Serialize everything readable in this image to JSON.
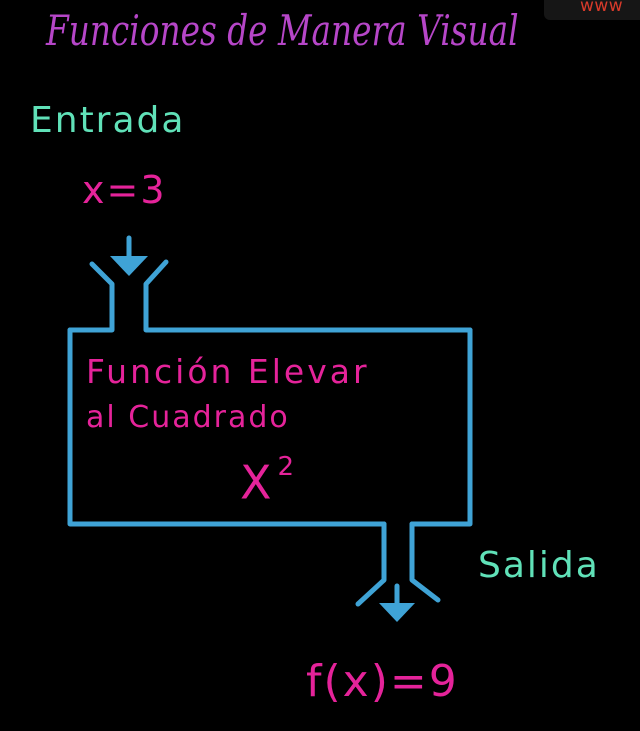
{
  "title": "Funciones de Manera Visual",
  "watermark": "www",
  "input": {
    "label": "Entrada",
    "expression": "x=3"
  },
  "function_box": {
    "name_line_1": "Función Elevar",
    "name_line_2": "al Cuadrado",
    "expression_base": "X",
    "expression_exponent": "2"
  },
  "output": {
    "label": "Salida",
    "expression": "f(x)=9"
  },
  "colors": {
    "background": "#000000",
    "title": "#b646c8",
    "labels": "#60e1b8",
    "math_text": "#e5239a",
    "machine_outline": "#3fa3d6",
    "arrows": "#3fa3d6",
    "watermark": "#d83a2a"
  }
}
